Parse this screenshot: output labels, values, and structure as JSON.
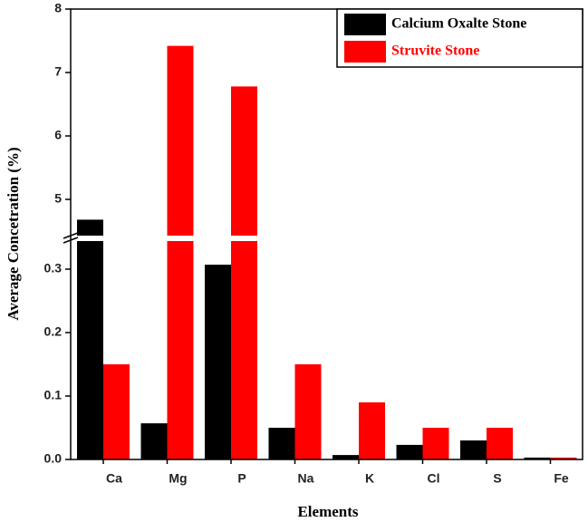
{
  "chart_data": {
    "type": "bar",
    "xlabel": "Elements",
    "ylabel": "Average Concetration (%)",
    "categories": [
      "Ca",
      "Mg",
      "P",
      "Na",
      "K",
      "Cl",
      "S",
      "Fe"
    ],
    "series": [
      {
        "name": "Calcium Oxalte Stone",
        "color": "#000000",
        "values": [
          4.68,
          0.057,
          0.307,
          0.05,
          0.007,
          0.023,
          0.03,
          0.003
        ]
      },
      {
        "name": "Struvite Stone",
        "color": "#ff0000",
        "values": [
          0.15,
          7.42,
          6.78,
          0.15,
          0.09,
          0.05,
          0.05,
          0.003
        ]
      }
    ],
    "ylim": [
      0,
      8
    ],
    "axis_break": [
      0.35,
      4.4
    ],
    "yticks": [
      {
        "value": 0,
        "label": "0.0"
      },
      0.1,
      0.2,
      0.3,
      5,
      6,
      7,
      8
    ],
    "legend": "top-right"
  }
}
